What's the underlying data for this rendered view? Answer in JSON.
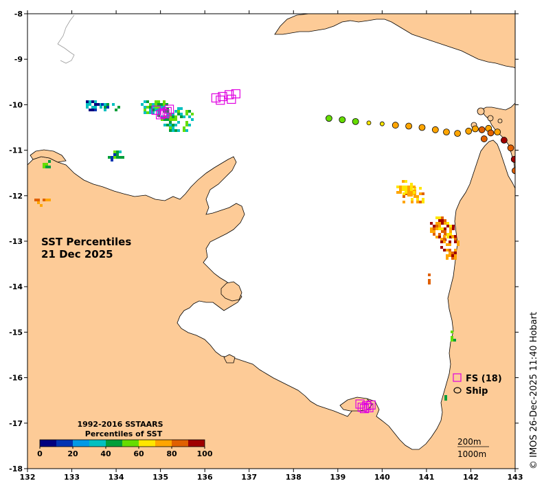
{
  "map": {
    "title_line1": "SST Percentiles",
    "title_line2": "21 Dec 2025",
    "lon_range": [
      132,
      143
    ],
    "lat_range": [
      -18,
      -8
    ],
    "lon_ticks": [
      "132",
      "133",
      "134",
      "135",
      "136",
      "137",
      "138",
      "139",
      "140",
      "141",
      "142",
      "143"
    ],
    "lat_ticks": [
      "-8",
      "-9",
      "-10",
      "-11",
      "-12",
      "-13",
      "-14",
      "-15",
      "-16",
      "-17",
      "-18"
    ],
    "land_color": "#FDCB97",
    "sea_color": "#FFFFFF"
  },
  "colorbar": {
    "title_line1": "1992-2016 SSTAARS",
    "title_line2": "Percentiles of SST",
    "labels": [
      "0",
      "20",
      "40",
      "60",
      "80",
      "100"
    ],
    "colors": [
      "#00007F",
      "#0033B2",
      "#0099E6",
      "#00C0C0",
      "#009E3A",
      "#66DD00",
      "#FFE600",
      "#FFA500",
      "#E06000",
      "#A00000"
    ]
  },
  "legend": {
    "fs_label": "FS (18)",
    "ship_label": "Ship",
    "fs_color": "#E000E0"
  },
  "scale": {
    "label1": "200m",
    "label2": "1000m"
  },
  "credit": "© IMOS 26-Dec-2025 11:40 Hobart",
  "floats": [
    {
      "lon": 136.25,
      "lat": -9.85
    },
    {
      "lon": 136.4,
      "lat": -9.82
    },
    {
      "lon": 136.55,
      "lat": -9.78
    },
    {
      "lon": 136.7,
      "lat": -9.76
    },
    {
      "lon": 136.6,
      "lat": -9.88
    },
    {
      "lon": 134.9,
      "lat": -10.12
    },
    {
      "lon": 135.05,
      "lat": -10.18
    },
    {
      "lon": 135.15,
      "lat": -10.15
    },
    {
      "lon": 135.0,
      "lat": -10.22
    },
    {
      "lon": 135.1,
      "lat": -10.2
    },
    {
      "lon": 139.55,
      "lat": -16.65
    },
    {
      "lon": 139.65,
      "lat": -16.62
    },
    {
      "lon": 139.75,
      "lat": -16.6
    },
    {
      "lon": 139.6,
      "lat": -16.68
    },
    {
      "lon": 139.7,
      "lat": -16.66
    },
    {
      "lon": 136.35,
      "lat": -9.9
    },
    {
      "lon": 135.2,
      "lat": -10.1
    },
    {
      "lon": 139.5,
      "lat": -16.58
    }
  ],
  "ships": [
    {
      "lon": 138.8,
      "lat": -10.3,
      "pct": 55
    },
    {
      "lon": 139.1,
      "lat": -10.33,
      "pct": 55
    },
    {
      "lon": 139.4,
      "lat": -10.37,
      "pct": 55
    },
    {
      "lon": 139.7,
      "lat": -10.4,
      "pct": 68
    },
    {
      "lon": 140.0,
      "lat": -10.42,
      "pct": 68
    },
    {
      "lon": 140.3,
      "lat": -10.45,
      "pct": 75
    },
    {
      "lon": 140.6,
      "lat": -10.47,
      "pct": 75
    },
    {
      "lon": 140.9,
      "lat": -10.5,
      "pct": 75
    },
    {
      "lon": 141.2,
      "lat": -10.55,
      "pct": 75
    },
    {
      "lon": 141.45,
      "lat": -10.6,
      "pct": 75
    },
    {
      "lon": 141.7,
      "lat": -10.63,
      "pct": 75
    },
    {
      "lon": 141.95,
      "lat": -10.58,
      "pct": 75
    },
    {
      "lon": 142.1,
      "lat": -10.53,
      "pct": 75
    },
    {
      "lon": 142.25,
      "lat": -10.55,
      "pct": 85
    },
    {
      "lon": 142.4,
      "lat": -10.52,
      "pct": 75
    },
    {
      "lon": 142.6,
      "lat": -10.6,
      "pct": 75
    },
    {
      "lon": 142.3,
      "lat": -10.75,
      "pct": 85
    },
    {
      "lon": 142.75,
      "lat": -10.78,
      "pct": 95
    },
    {
      "lon": 142.9,
      "lat": -10.95,
      "pct": 85
    },
    {
      "lon": 142.98,
      "lat": -11.2,
      "pct": 95
    },
    {
      "lon": 143.0,
      "lat": -11.45,
      "pct": 85
    },
    {
      "lon": 142.45,
      "lat": -10.62,
      "pct": 85
    }
  ],
  "sst_patches": [
    {
      "lon": 133.5,
      "lat": -10.0,
      "rlon": 0.25,
      "rlat": 0.15,
      "pct": [
        5,
        15,
        30
      ]
    },
    {
      "lon": 133.85,
      "lat": -10.0,
      "rlon": 0.25,
      "rlat": 0.1,
      "pct": [
        30,
        45,
        15
      ]
    },
    {
      "lon": 134.85,
      "lat": -10.05,
      "rlon": 0.35,
      "rlat": 0.2,
      "pct": [
        35,
        45,
        55
      ]
    },
    {
      "lon": 135.35,
      "lat": -10.3,
      "rlon": 0.4,
      "rlat": 0.3,
      "pct": [
        45,
        55,
        35
      ]
    },
    {
      "lon": 133.95,
      "lat": -11.1,
      "rlon": 0.2,
      "rlat": 0.15,
      "pct": [
        35,
        45,
        55,
        15
      ]
    },
    {
      "lon": 140.7,
      "lat": -12.0,
      "rlon": 0.3,
      "rlat": 0.25,
      "pct": [
        75,
        85,
        68
      ]
    },
    {
      "lon": 140.5,
      "lat": -11.8,
      "rlon": 0.25,
      "rlat": 0.2,
      "pct": [
        68,
        75
      ]
    },
    {
      "lon": 141.3,
      "lat": -12.7,
      "rlon": 0.35,
      "rlat": 0.3,
      "pct": [
        75,
        85,
        95,
        68
      ]
    },
    {
      "lon": 141.5,
      "lat": -13.1,
      "rlon": 0.25,
      "rlat": 0.3,
      "pct": [
        85,
        95,
        75
      ]
    },
    {
      "lon": 141.05,
      "lat": -13.8,
      "rlon": 0.08,
      "rlat": 0.15,
      "pct": [
        85
      ]
    },
    {
      "lon": 132.3,
      "lat": -12.1,
      "rlon": 0.2,
      "rlat": 0.1,
      "pct": [
        85,
        75
      ]
    },
    {
      "lon": 132.4,
      "lat": -11.3,
      "rlon": 0.12,
      "rlat": 0.15,
      "pct": [
        55,
        45
      ]
    },
    {
      "lon": 141.55,
      "lat": -15.05,
      "rlon": 0.07,
      "rlat": 0.15,
      "pct": [
        45,
        55
      ]
    },
    {
      "lon": 141.4,
      "lat": -16.4,
      "rlon": 0.06,
      "rlat": 0.08,
      "pct": [
        35,
        45
      ]
    }
  ]
}
